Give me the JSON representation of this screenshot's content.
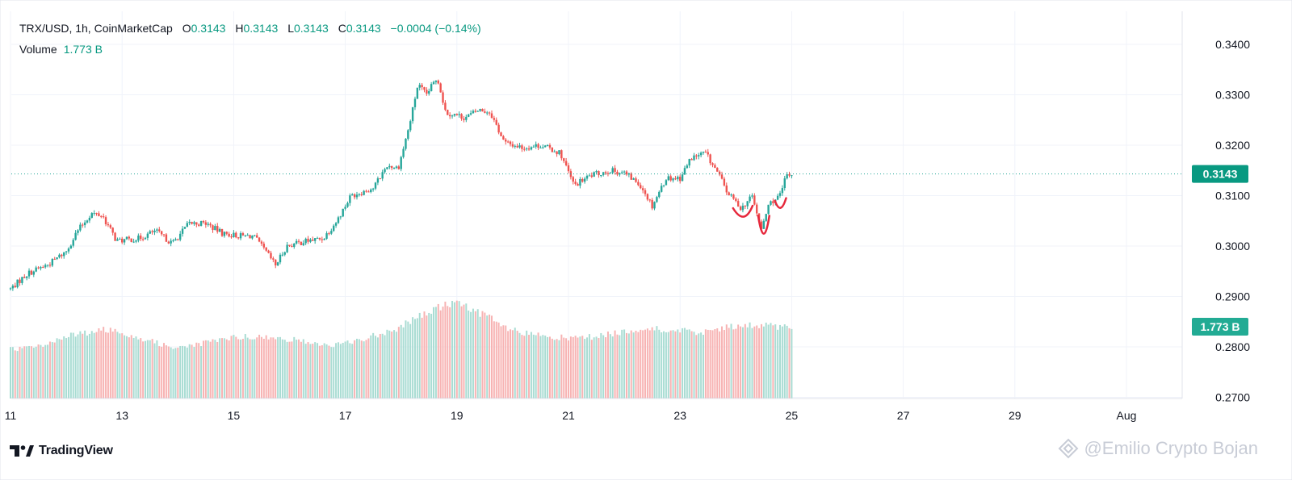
{
  "legend": {
    "symbol": "TRX/USD, 1h, CoinMarketCap",
    "open_label": "O",
    "open": "0.3143",
    "high_label": "H",
    "high": "0.3143",
    "low_label": "L",
    "low": "0.3143",
    "close_label": "C",
    "close": "0.3143",
    "change": "−0.0004 (−0.14%)",
    "volume_label": "Volume",
    "volume": "1.773 B"
  },
  "brand": {
    "name": "TradingView"
  },
  "watermark": {
    "text": "@Emilio Crypto Bojan"
  },
  "colors": {
    "up": "#26a69a",
    "down": "#ef5350",
    "vol_up": "#a9dcd3",
    "vol_down": "#f7b3b3",
    "grid": "#f0f3fa",
    "annotation": "#e6283c"
  },
  "chart_data": {
    "type": "candlestick",
    "title": "TRX/USD, 1h, CoinMarketCap",
    "ylim": [
      0.2695,
      0.3435
    ],
    "y_ticks": [
      "0.3400",
      "0.3300",
      "0.3200",
      "0.3100",
      "0.3000",
      "0.2900",
      "0.2800",
      "0.2700"
    ],
    "x_ticks": [
      "11",
      "13",
      "15",
      "17",
      "19",
      "21",
      "23",
      "25",
      "27",
      "29",
      "Aug"
    ],
    "x_tick_positions_day": [
      11,
      13,
      15,
      17,
      19,
      21,
      23,
      25,
      27,
      29,
      31
    ],
    "last_price": "0.3143",
    "last_volume": "1.773 B",
    "grid": true,
    "price_path": [
      [
        11.0,
        0.2915
      ],
      [
        11.3,
        0.2945
      ],
      [
        11.7,
        0.2965
      ],
      [
        12.0,
        0.299
      ],
      [
        12.2,
        0.303
      ],
      [
        12.45,
        0.3065
      ],
      [
        12.65,
        0.306
      ],
      [
        12.9,
        0.301
      ],
      [
        13.3,
        0.3015
      ],
      [
        13.6,
        0.303
      ],
      [
        13.9,
        0.3005
      ],
      [
        14.2,
        0.3045
      ],
      [
        14.5,
        0.3045
      ],
      [
        14.8,
        0.3025
      ],
      [
        15.1,
        0.302
      ],
      [
        15.35,
        0.302
      ],
      [
        15.6,
        0.2985
      ],
      [
        15.75,
        0.2962
      ],
      [
        15.95,
        0.3
      ],
      [
        16.3,
        0.301
      ],
      [
        16.6,
        0.3015
      ],
      [
        16.85,
        0.305
      ],
      [
        17.1,
        0.31
      ],
      [
        17.5,
        0.3115
      ],
      [
        17.75,
        0.316
      ],
      [
        17.95,
        0.3155
      ],
      [
        18.15,
        0.324
      ],
      [
        18.3,
        0.332
      ],
      [
        18.45,
        0.33
      ],
      [
        18.65,
        0.3335
      ],
      [
        18.8,
        0.3265
      ],
      [
        19.15,
        0.3255
      ],
      [
        19.4,
        0.327
      ],
      [
        19.6,
        0.3265
      ],
      [
        19.85,
        0.3205
      ],
      [
        20.2,
        0.3195
      ],
      [
        20.5,
        0.32
      ],
      [
        20.85,
        0.3185
      ],
      [
        21.1,
        0.312
      ],
      [
        21.4,
        0.314
      ],
      [
        21.75,
        0.315
      ],
      [
        22.0,
        0.3145
      ],
      [
        22.3,
        0.312
      ],
      [
        22.5,
        0.308
      ],
      [
        22.75,
        0.3135
      ],
      [
        23.0,
        0.3135
      ],
      [
        23.2,
        0.3175
      ],
      [
        23.45,
        0.3185
      ],
      [
        23.7,
        0.314
      ],
      [
        23.85,
        0.3105
      ],
      [
        24.1,
        0.3075
      ],
      [
        24.3,
        0.31
      ],
      [
        24.45,
        0.303
      ],
      [
        24.6,
        0.3085
      ],
      [
        24.8,
        0.31
      ],
      [
        24.9,
        0.314
      ],
      [
        25.0,
        0.3143
      ]
    ],
    "volume_path": [
      [
        11.0,
        1.24
      ],
      [
        11.5,
        1.32
      ],
      [
        12.0,
        1.56
      ],
      [
        12.5,
        1.7
      ],
      [
        12.75,
        1.74
      ],
      [
        13.0,
        1.68
      ],
      [
        13.5,
        1.45
      ],
      [
        13.9,
        1.3
      ],
      [
        14.3,
        1.34
      ],
      [
        14.8,
        1.5
      ],
      [
        15.25,
        1.58
      ],
      [
        15.6,
        1.52
      ],
      [
        16.0,
        1.5
      ],
      [
        16.4,
        1.4
      ],
      [
        16.8,
        1.34
      ],
      [
        17.1,
        1.42
      ],
      [
        17.5,
        1.58
      ],
      [
        17.9,
        1.76
      ],
      [
        18.4,
        2.12
      ],
      [
        18.8,
        2.38
      ],
      [
        19.1,
        2.36
      ],
      [
        19.5,
        2.12
      ],
      [
        19.85,
        1.78
      ],
      [
        20.2,
        1.64
      ],
      [
        20.6,
        1.58
      ],
      [
        21.0,
        1.52
      ],
      [
        21.5,
        1.56
      ],
      [
        22.0,
        1.7
      ],
      [
        22.5,
        1.76
      ],
      [
        23.0,
        1.7
      ],
      [
        23.5,
        1.68
      ],
      [
        23.9,
        1.8
      ],
      [
        24.3,
        1.84
      ],
      [
        24.6,
        1.85
      ],
      [
        25.0,
        1.773
      ]
    ],
    "volume_max": 2.4,
    "annotations": [
      {
        "type": "curve",
        "label": "",
        "points": [
          [
            23.95,
            0.3075
          ],
          [
            24.15,
            0.3055
          ],
          [
            24.3,
            0.308
          ]
        ]
      },
      {
        "type": "curve",
        "label": "",
        "points": [
          [
            24.4,
            0.306
          ],
          [
            24.5,
            0.3005
          ],
          [
            24.6,
            0.306
          ]
        ]
      },
      {
        "type": "curve",
        "label": "",
        "points": [
          [
            24.7,
            0.309
          ],
          [
            24.8,
            0.3075
          ],
          [
            24.9,
            0.3095
          ]
        ]
      }
    ]
  }
}
